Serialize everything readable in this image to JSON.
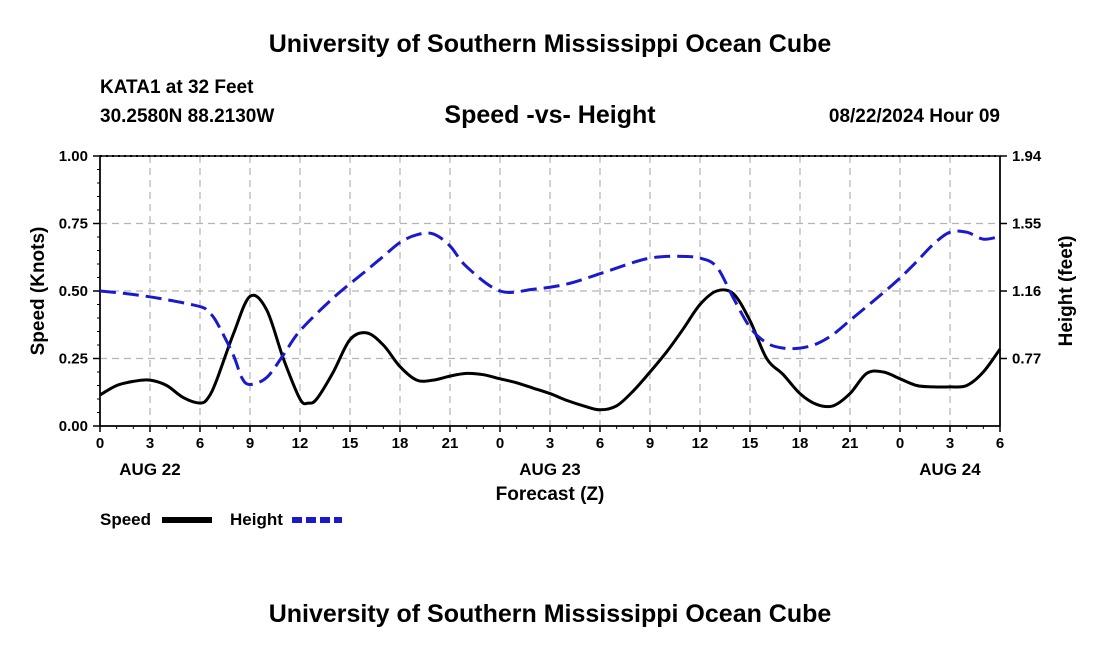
{
  "header": {
    "title": "University of Southern Mississippi Ocean Cube",
    "station": "KATA1 at 32 Feet",
    "coords": "30.2580N  88.2130W",
    "subtitle": "Speed -vs- Height",
    "run_time": "08/22/2024 Hour 09"
  },
  "footer": {
    "title": "University of Southern Mississippi Ocean Cube"
  },
  "legend": {
    "speed_label": "Speed",
    "height_label": "Height"
  },
  "colors": {
    "speed": "#000000",
    "height": "#1a1acc",
    "grid": "#b4b4b4"
  },
  "chart_data": {
    "type": "line",
    "title": "Speed -vs- Height",
    "xlabel": "Forecast (Z)",
    "ylabel": "Speed (Knots)",
    "y2label": "Height (feet)",
    "x_tick_labels": [
      "0",
      "3",
      "6",
      "9",
      "12",
      "15",
      "18",
      "21",
      "0",
      "3",
      "6",
      "9",
      "12",
      "15",
      "18",
      "21",
      "0",
      "3",
      "6"
    ],
    "date_labels": [
      {
        "label": "AUG 22",
        "x": 12
      },
      {
        "label": "AUG 23",
        "x": 36
      },
      {
        "label": "AUG 24",
        "x": 60
      }
    ],
    "xlim": [
      0,
      54
    ],
    "ylim": [
      0,
      1.0
    ],
    "y_ticks": [
      "0.00",
      "0.25",
      "0.50",
      "0.75",
      "1.00"
    ],
    "y2lim": [
      0.38,
      1.94
    ],
    "y2_ticks": [
      {
        "label": "0.77",
        "value": 0.77
      },
      {
        "label": "1.16",
        "value": 1.16
      },
      {
        "label": "1.55",
        "value": 1.55
      },
      {
        "label": "1.94",
        "value": 1.94
      }
    ],
    "grid": true,
    "series": [
      {
        "name": "Speed",
        "axis": "left",
        "style": "solid",
        "x": [
          0,
          1,
          2,
          3,
          4,
          5,
          6,
          6.5,
          7,
          8,
          9,
          10,
          11,
          12,
          12.5,
          13,
          14,
          15,
          16,
          17,
          18,
          19,
          20,
          21,
          22,
          23,
          24,
          25,
          26,
          27,
          28,
          29,
          30,
          31,
          32,
          33,
          34,
          35,
          36,
          37,
          38,
          39,
          40,
          41,
          42,
          43,
          44,
          45,
          46,
          47,
          48,
          49,
          50,
          51,
          52,
          53,
          54
        ],
        "values": [
          0.115,
          0.15,
          0.165,
          0.17,
          0.15,
          0.105,
          0.085,
          0.105,
          0.17,
          0.34,
          0.48,
          0.43,
          0.25,
          0.1,
          0.085,
          0.1,
          0.2,
          0.32,
          0.345,
          0.3,
          0.22,
          0.17,
          0.17,
          0.185,
          0.195,
          0.19,
          0.175,
          0.16,
          0.14,
          0.12,
          0.095,
          0.075,
          0.06,
          0.075,
          0.13,
          0.2,
          0.275,
          0.36,
          0.45,
          0.5,
          0.49,
          0.39,
          0.25,
          0.19,
          0.12,
          0.08,
          0.075,
          0.12,
          0.195,
          0.2,
          0.175,
          0.15,
          0.145,
          0.145,
          0.15,
          0.2,
          0.285
        ]
      },
      {
        "name": "Height",
        "axis": "right",
        "style": "dashed",
        "x": [
          0,
          2,
          4,
          6,
          6.5,
          7,
          8,
          8.5,
          9,
          10,
          11,
          12,
          14,
          16,
          17,
          18,
          19,
          20,
          21,
          22,
          24,
          26,
          28,
          30,
          32,
          33,
          34,
          35,
          36,
          37,
          38,
          39,
          40,
          41,
          42,
          43,
          44,
          45,
          46,
          47,
          48,
          49,
          50,
          51,
          52,
          53,
          54
        ],
        "values": [
          1.16,
          1.14,
          1.11,
          1.07,
          1.04,
          0.98,
          0.79,
          0.66,
          0.62,
          0.66,
          0.79,
          0.93,
          1.12,
          1.28,
          1.36,
          1.44,
          1.485,
          1.49,
          1.42,
          1.3,
          1.16,
          1.17,
          1.2,
          1.26,
          1.325,
          1.35,
          1.36,
          1.36,
          1.35,
          1.3,
          1.12,
          0.95,
          0.86,
          0.83,
          0.83,
          0.855,
          0.91,
          0.99,
          1.07,
          1.15,
          1.235,
          1.33,
          1.43,
          1.5,
          1.5,
          1.46,
          1.475
        ]
      }
    ]
  }
}
